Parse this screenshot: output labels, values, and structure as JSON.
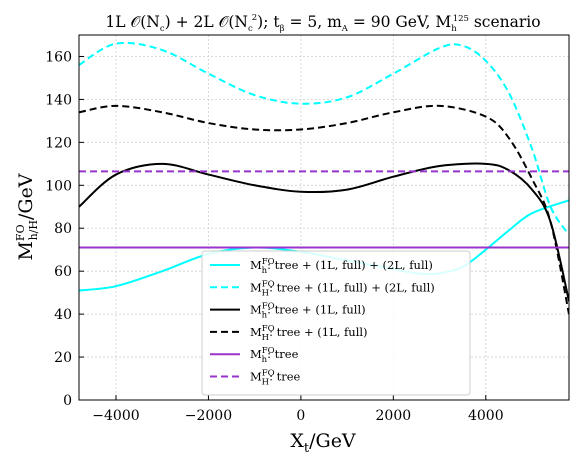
{
  "chart_data": {
    "type": "line",
    "title": "1L 𝒪(N_c) + 2L 𝒪(N_c²); t_β = 5, m_A = 90 GeV, M_h^125 scenario",
    "title_parts": {
      "prefix": "1L ",
      "o1": "𝒪(N",
      "o1_sub": "c",
      "mid": ") + 2L ",
      "o2": "𝒪(N",
      "o2_sub": "c",
      "o2_sup": "2",
      "after": "); t",
      "tb_sub": "β",
      "tb_val": " = 5, m",
      "ma_sub": "A",
      "ma_val": " = 90 GeV, M",
      "mh_sub": "h",
      "mh_sup": "125",
      "suffix": " scenario"
    },
    "xlabel": "X_t/GeV",
    "xlabel_parts": {
      "main": "X",
      "sub": "t",
      "unit": "/GeV"
    },
    "ylabel": "M^FO_{h/H}/GeV",
    "ylabel_parts": {
      "main": "M",
      "sup": "FO",
      "sub": "h/H",
      "unit": "/GeV"
    },
    "xlim": [
      -4800,
      5800
    ],
    "ylim": [
      0,
      170
    ],
    "xticks": [
      -4000,
      -2000,
      0,
      2000,
      4000
    ],
    "xtick_labels": [
      "−4000",
      "−2000",
      "0",
      "2000",
      "4000"
    ],
    "yticks": [
      0,
      20,
      40,
      60,
      80,
      100,
      120,
      140,
      160
    ],
    "ytick_labels": [
      "0",
      "20",
      "40",
      "60",
      "80",
      "100",
      "120",
      "140",
      "160"
    ],
    "grid": true,
    "legend_position": "lower-center",
    "series": [
      {
        "name": "M_h^FO: tree + (1L, full) + (2L, full)",
        "label_parts": {
          "sub": "h",
          "text": ": tree + (1L, full) + (2L, full)"
        },
        "color": "#00FFFF",
        "dash": "solid",
        "x": [
          -4800,
          -4000,
          -3000,
          -2000,
          -1000,
          0,
          1000,
          2000,
          2500,
          3000,
          3500,
          4000,
          4500,
          5000,
          5800
        ],
        "y": [
          51,
          53,
          60,
          68,
          71,
          69,
          65,
          61,
          59,
          59,
          62,
          70,
          79,
          87,
          93
        ]
      },
      {
        "name": "M_H^FO: tree + (1L, full) + (2L, full)",
        "label_parts": {
          "sub": "H",
          "text": ": tree + (1L, full) + (2L, full)"
        },
        "color": "#00FFFF",
        "dash": "dashed",
        "x": [
          -4800,
          -4000,
          -3000,
          -2000,
          -1000,
          0,
          1000,
          2000,
          3000,
          3500,
          4000,
          4500,
          5000,
          5400,
          5800
        ],
        "y": [
          156,
          166,
          163,
          152,
          142,
          138,
          141,
          152,
          164,
          165,
          158,
          143,
          117,
          90,
          77
        ]
      },
      {
        "name": "M_h^FO: tree + (1L, full)",
        "label_parts": {
          "sub": "h",
          "text": ": tree + (1L, full)"
        },
        "color": "#000000",
        "dash": "solid",
        "x": [
          -4800,
          -4000,
          -3000,
          -2000,
          -1000,
          0,
          1000,
          2000,
          3000,
          4000,
          4500,
          5000,
          5400,
          5800
        ],
        "y": [
          90,
          105,
          110,
          105,
          100,
          97,
          98,
          104,
          109,
          110,
          107,
          98,
          83,
          46
        ]
      },
      {
        "name": "M_H^FO: tree + (1L, full)",
        "label_parts": {
          "sub": "H",
          "text": ": tree + (1L, full)"
        },
        "color": "#000000",
        "dash": "dashed",
        "x": [
          -4800,
          -4000,
          -3000,
          -2000,
          -1000,
          0,
          1000,
          2000,
          3000,
          4000,
          4500,
          5000,
          5400,
          5800
        ],
        "y": [
          134,
          137,
          134,
          129,
          126,
          126,
          129,
          134,
          137,
          132,
          122,
          103,
          83,
          40
        ]
      },
      {
        "name": "M_h^FO: tree",
        "label_parts": {
          "sub": "h",
          "text": ": tree"
        },
        "color": "#9933CC",
        "dash": "solid",
        "x": [
          -4800,
          5800
        ],
        "y": [
          71,
          71
        ]
      },
      {
        "name": "M_H^FO: tree",
        "label_parts": {
          "sub": "H",
          "text": ": tree"
        },
        "color": "#9933CC",
        "dash": "dashed",
        "x": [
          -4800,
          5800
        ],
        "y": [
          106.5,
          106.5
        ]
      }
    ]
  }
}
